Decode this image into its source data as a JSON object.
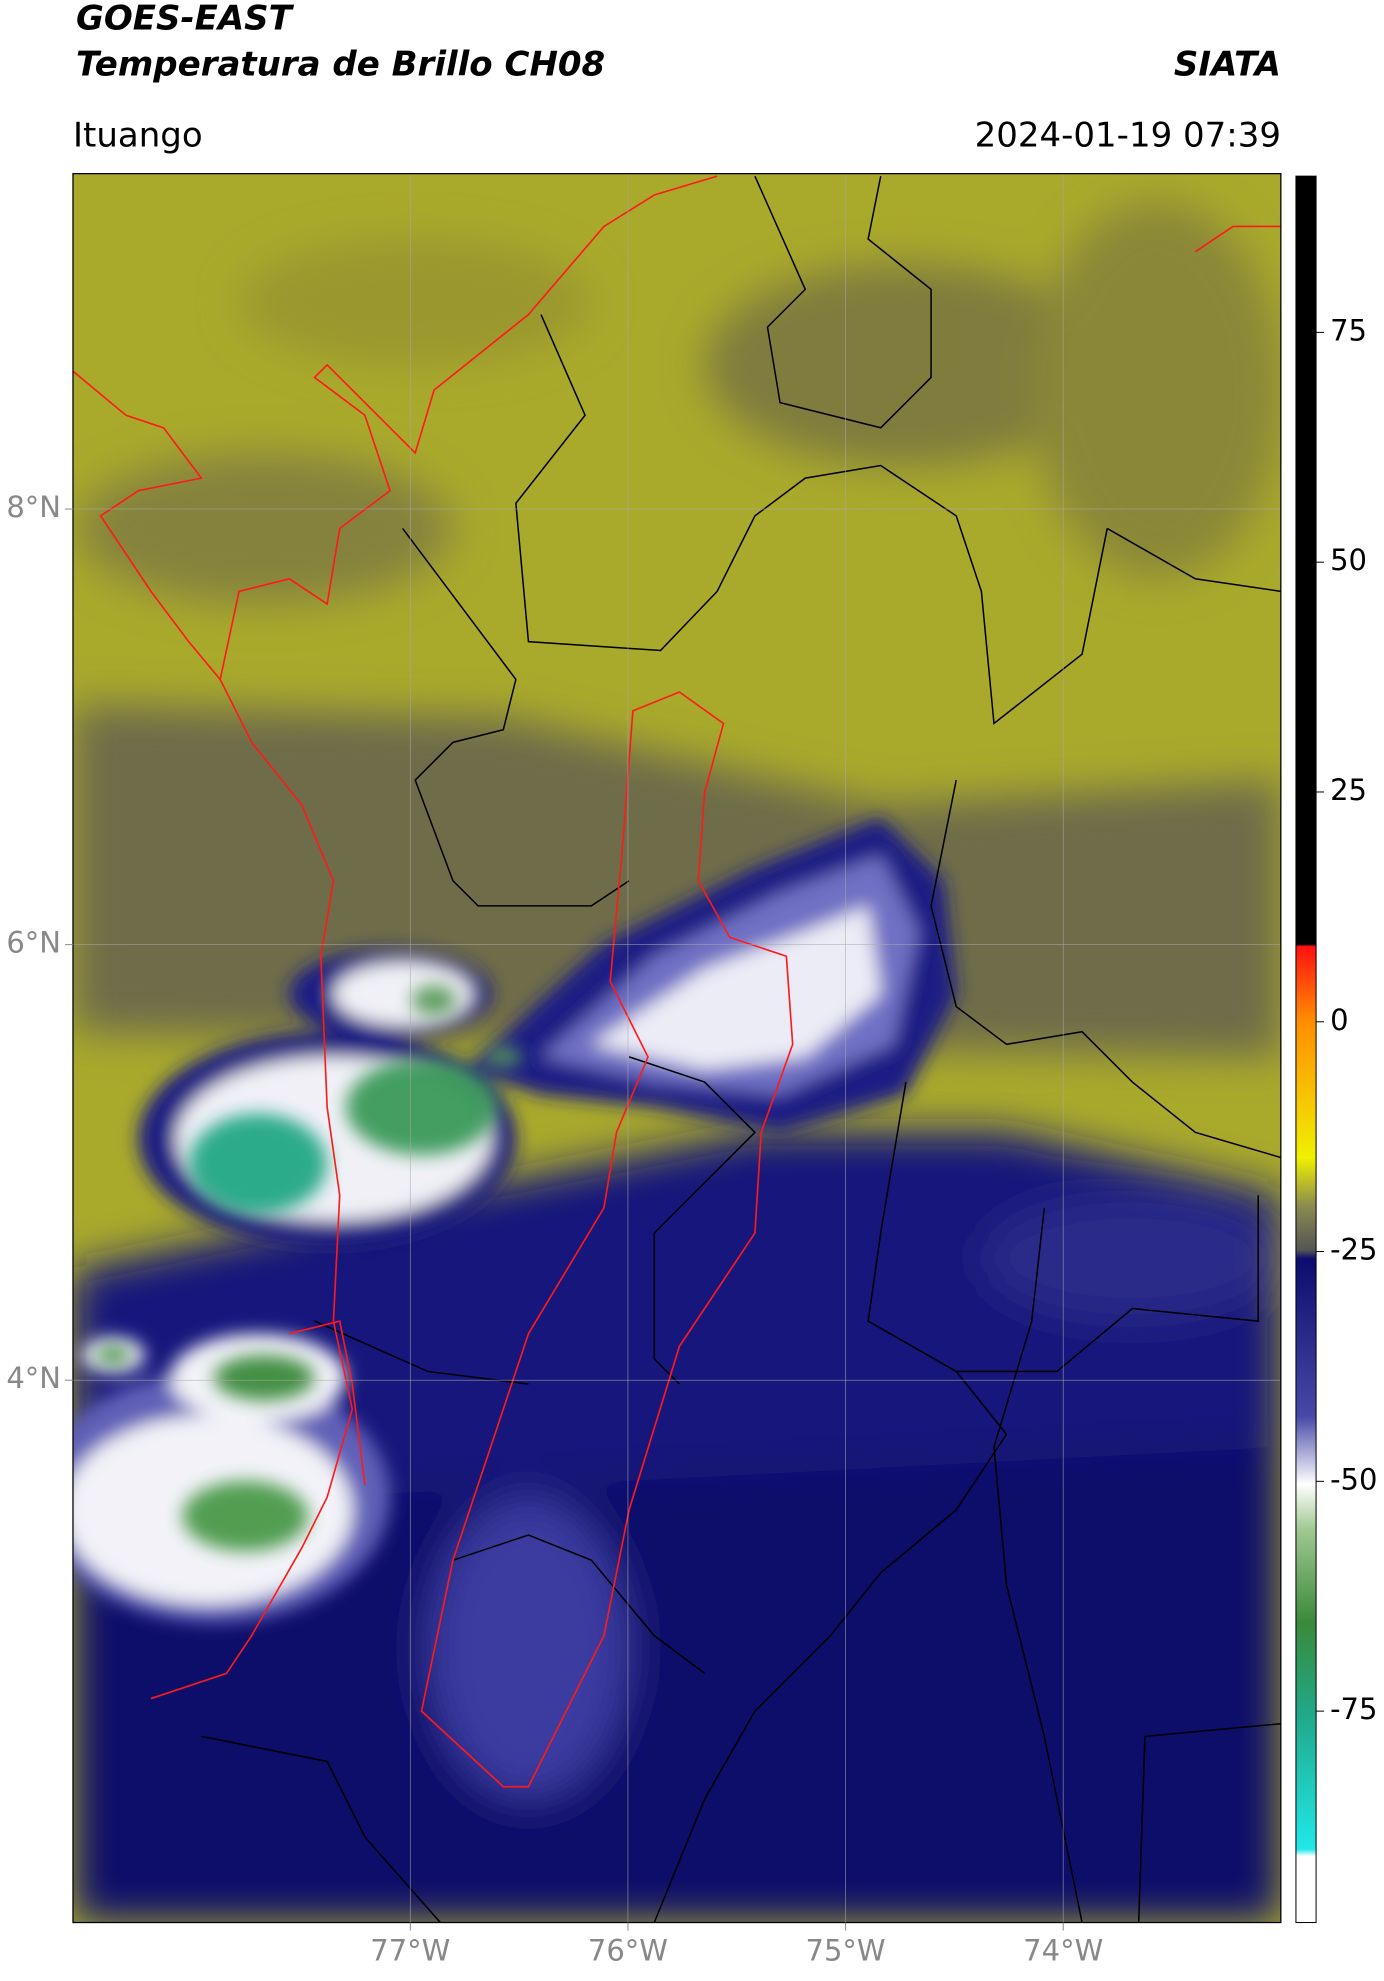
{
  "header": {
    "title": "GOES-EAST",
    "subtitle": "Temperatura de Brillo CH08",
    "agency": "SIATA",
    "location": "Ituango",
    "datetime": "2024-01-19 07:39"
  },
  "map": {
    "lon_range": [
      -78.55,
      -73.0
    ],
    "lat_range": [
      1.51,
      9.54
    ],
    "xticks": [
      {
        "value": -77,
        "label": "77°W"
      },
      {
        "value": -76,
        "label": "76°W"
      },
      {
        "value": -75,
        "label": "75°W"
      },
      {
        "value": -74,
        "label": "74°W"
      }
    ],
    "yticks": [
      {
        "value": 4,
        "label": "4°N"
      },
      {
        "value": 6,
        "label": "6°N"
      },
      {
        "value": 8,
        "label": "8°N"
      }
    ],
    "grid": true
  },
  "colorbar": {
    "lim": [
      -98,
      92
    ],
    "ticks": [
      -75,
      -50,
      -25,
      0,
      25,
      50,
      75
    ]
  }
}
